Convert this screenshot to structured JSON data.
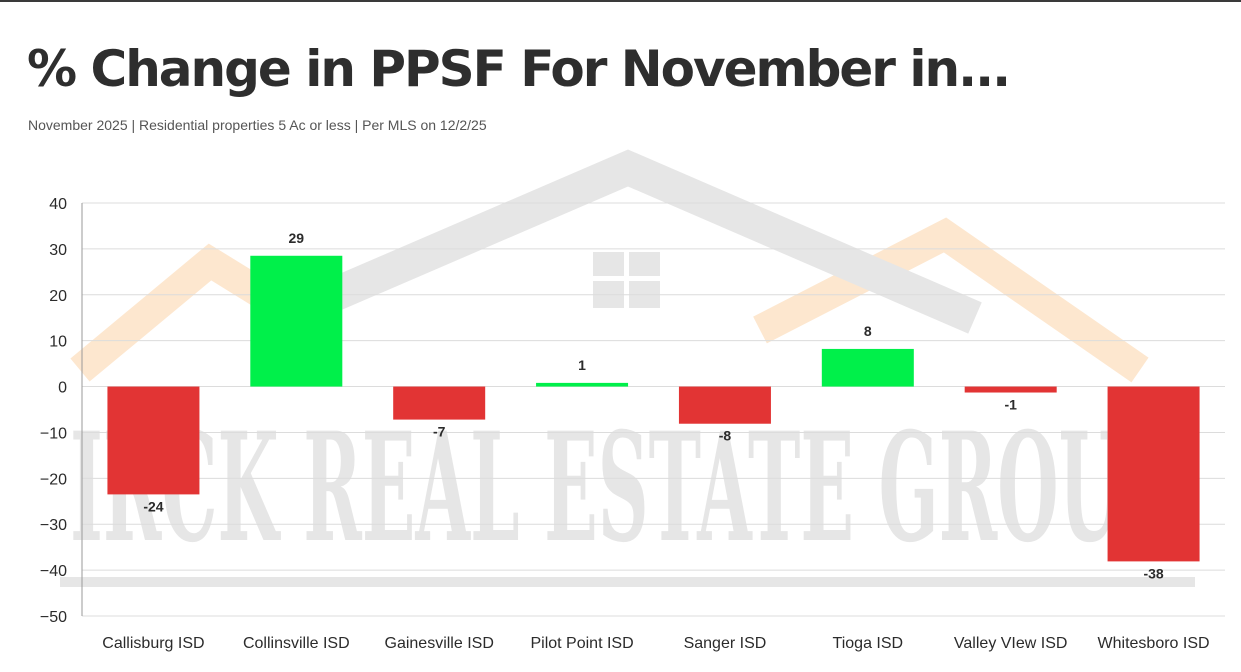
{
  "page": {
    "title": "% Change in PPSF For November in...",
    "subtitle": "November 2025 | Residential properties 5 Ac or less | Per MLS on 12/2/25"
  },
  "watermark": {
    "text": "IRCK REAL ESTATE GROU",
    "icon": "house-roof-icon"
  },
  "colors": {
    "positive": "#00f04a",
    "negative": "#e23434",
    "grid": "#dcdcdc",
    "axis": "#9a9a9a",
    "watermark_gray": "#e6e6e6",
    "watermark_orange": "#fde7cf"
  },
  "chart_data": {
    "type": "bar",
    "title": "% Change in PPSF For November in...",
    "categories": [
      "Callisburg ISD",
      "Collinsville ISD",
      "Gainesville ISD",
      "Pilot Point ISD",
      "Sanger ISD",
      "Tioga ISD",
      "Valley VIew ISD",
      "Whitesboro ISD"
    ],
    "values": [
      -23.5,
      28.5,
      -7.2,
      0.8,
      -8.1,
      8.2,
      -1.3,
      -38.1
    ],
    "data_labels": [
      "-24",
      "29",
      "-7",
      "1",
      "-8",
      "8",
      "-1",
      "-38"
    ],
    "ylim": [
      -50,
      40
    ],
    "yticks": [
      40,
      30,
      20,
      10,
      0,
      -10,
      -20,
      -30,
      -40,
      -50
    ],
    "xlabel": "",
    "ylabel": "",
    "grid": true,
    "legend": "none"
  }
}
